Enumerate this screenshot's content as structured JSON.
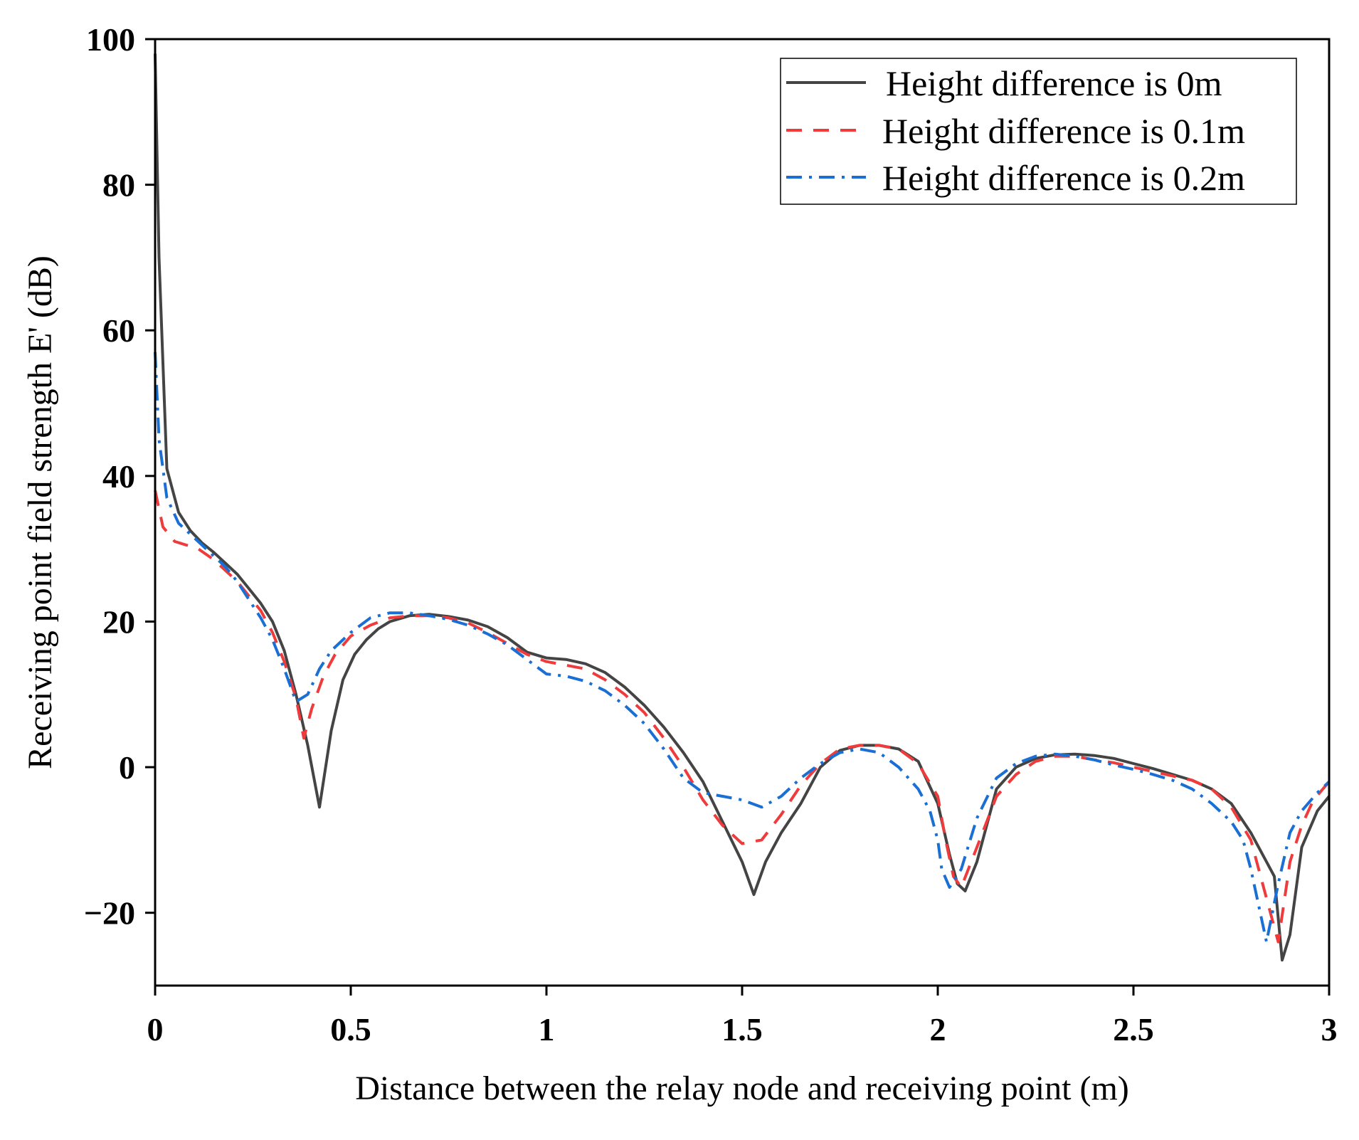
{
  "chart_data": {
    "type": "line",
    "title": "",
    "xlabel": "Distance between the relay node and receiving point (m)",
    "ylabel": "Receiving point field strength E' (dB)",
    "xlim": [
      0,
      3
    ],
    "ylim": [
      -30,
      100
    ],
    "xticks": [
      0,
      0.5,
      1,
      1.5,
      2,
      2.5,
      3
    ],
    "xtick_labels": [
      "0",
      "0.5",
      "1",
      "1.5",
      "2",
      "2.5",
      "3"
    ],
    "yticks": [
      -20,
      0,
      20,
      40,
      60,
      80,
      100
    ],
    "ytick_labels": [
      "−20",
      "0",
      "20",
      "40",
      "60",
      "80",
      "100"
    ],
    "grid": false,
    "legend_position": "top-right",
    "series": [
      {
        "name": "Height difference is 0m",
        "color": "#444444",
        "style": "solid",
        "x": [
          0,
          0.01,
          0.03,
          0.06,
          0.09,
          0.12,
          0.15,
          0.18,
          0.21,
          0.24,
          0.27,
          0.3,
          0.33,
          0.36,
          0.39,
          0.42,
          0.45,
          0.48,
          0.51,
          0.54,
          0.57,
          0.6,
          0.65,
          0.7,
          0.75,
          0.8,
          0.85,
          0.9,
          0.95,
          1.0,
          1.05,
          1.1,
          1.15,
          1.2,
          1.25,
          1.3,
          1.35,
          1.4,
          1.45,
          1.5,
          1.53,
          1.56,
          1.6,
          1.65,
          1.7,
          1.75,
          1.8,
          1.85,
          1.9,
          1.95,
          2.0,
          2.03,
          2.05,
          2.07,
          2.1,
          2.15,
          2.2,
          2.25,
          2.3,
          2.35,
          2.4,
          2.45,
          2.5,
          2.55,
          2.6,
          2.65,
          2.7,
          2.75,
          2.8,
          2.83,
          2.86,
          2.88,
          2.9,
          2.93,
          2.97,
          3.0
        ],
        "values": [
          98,
          70,
          41,
          35,
          32.5,
          30.8,
          29.5,
          28,
          26.5,
          24.5,
          22.5,
          20,
          16,
          10,
          3,
          -5.5,
          5,
          12,
          15.5,
          17.5,
          19,
          20,
          20.8,
          21,
          20.7,
          20.2,
          19.3,
          17.8,
          15.8,
          15,
          14.8,
          14.2,
          13,
          11,
          8.5,
          5.5,
          2,
          -2,
          -7.5,
          -13,
          -17.5,
          -13,
          -9,
          -5,
          0,
          2.3,
          3,
          3,
          2.5,
          0.8,
          -5,
          -12,
          -16,
          -17,
          -13,
          -3,
          0,
          1.2,
          1.7,
          1.8,
          1.6,
          1.2,
          0.5,
          -0.2,
          -1,
          -1.8,
          -3,
          -5,
          -9,
          -12,
          -15,
          -26.5,
          -23,
          -11,
          -6,
          -4
        ]
      },
      {
        "name": "Height difference is 0.1m",
        "color": "#ef3b3b",
        "style": "dashed",
        "x": [
          0,
          0.02,
          0.05,
          0.08,
          0.11,
          0.15,
          0.18,
          0.21,
          0.24,
          0.27,
          0.3,
          0.33,
          0.36,
          0.38,
          0.4,
          0.43,
          0.46,
          0.5,
          0.55,
          0.6,
          0.65,
          0.7,
          0.75,
          0.8,
          0.85,
          0.9,
          0.95,
          1.0,
          1.05,
          1.1,
          1.15,
          1.2,
          1.25,
          1.3,
          1.35,
          1.4,
          1.45,
          1.5,
          1.55,
          1.6,
          1.65,
          1.7,
          1.75,
          1.8,
          1.85,
          1.9,
          1.95,
          2.0,
          2.02,
          2.04,
          2.06,
          2.1,
          2.15,
          2.2,
          2.25,
          2.3,
          2.35,
          2.4,
          2.45,
          2.5,
          2.55,
          2.6,
          2.65,
          2.7,
          2.75,
          2.8,
          2.83,
          2.85,
          2.87,
          2.9,
          2.93,
          2.96,
          3.0
        ],
        "values": [
          38,
          33,
          31,
          30.5,
          30,
          28.5,
          27,
          25.5,
          23.5,
          21.5,
          18.5,
          14.5,
          9.5,
          4,
          8,
          12.5,
          15.5,
          18,
          19.5,
          20.5,
          20.8,
          20.8,
          20.5,
          19.8,
          18.5,
          17,
          15.5,
          14.5,
          14,
          13.5,
          12,
          10,
          7.5,
          4,
          0,
          -4.5,
          -8,
          -10.5,
          -10,
          -6.5,
          -2.5,
          0.5,
          2.5,
          3,
          3,
          2.5,
          0.5,
          -4,
          -10,
          -15,
          -16.5,
          -11,
          -4,
          -1,
          0.8,
          1.5,
          1.5,
          1,
          0.6,
          0,
          -0.6,
          -1.2,
          -1.8,
          -3,
          -5.5,
          -10,
          -16,
          -20,
          -24,
          -13,
          -8,
          -4.5,
          -2
        ]
      },
      {
        "name": "Height difference is 0.2m",
        "color": "#1a6fd4",
        "style": "dashdot",
        "x": [
          0,
          0.01,
          0.03,
          0.06,
          0.1,
          0.14,
          0.18,
          0.21,
          0.24,
          0.27,
          0.3,
          0.33,
          0.36,
          0.39,
          0.42,
          0.45,
          0.5,
          0.55,
          0.6,
          0.65,
          0.7,
          0.75,
          0.8,
          0.85,
          0.9,
          0.95,
          1.0,
          1.05,
          1.1,
          1.15,
          1.2,
          1.25,
          1.3,
          1.35,
          1.4,
          1.45,
          1.5,
          1.55,
          1.6,
          1.65,
          1.7,
          1.75,
          1.8,
          1.85,
          1.9,
          1.95,
          1.98,
          2.0,
          2.01,
          2.03,
          2.06,
          2.1,
          2.15,
          2.2,
          2.25,
          2.3,
          2.35,
          2.4,
          2.45,
          2.5,
          2.55,
          2.6,
          2.65,
          2.7,
          2.75,
          2.78,
          2.8,
          2.82,
          2.84,
          2.87,
          2.9,
          2.93,
          2.97,
          3.0
        ],
        "values": [
          57,
          45,
          37,
          33.5,
          31.5,
          29.5,
          27.5,
          25.5,
          23,
          20.5,
          17.5,
          13.5,
          9,
          10,
          13.5,
          16,
          18.5,
          20.5,
          21.2,
          21.2,
          20.8,
          20.3,
          19.5,
          18.3,
          16.8,
          14.8,
          12.8,
          12.5,
          11.8,
          10.5,
          8.5,
          6,
          2.5,
          -1.5,
          -3.5,
          -4,
          -4.5,
          -5.5,
          -4,
          -1.5,
          0.5,
          2,
          2.5,
          2,
          0,
          -3,
          -6,
          -10,
          -14,
          -16.5,
          -14,
          -7,
          -1.5,
          0.5,
          1.5,
          1.8,
          1.5,
          1,
          0.3,
          -0.3,
          -1,
          -1.8,
          -3,
          -5,
          -7.5,
          -10,
          -14,
          -19,
          -24,
          -16,
          -9,
          -6,
          -3.5,
          -2
        ]
      }
    ]
  }
}
